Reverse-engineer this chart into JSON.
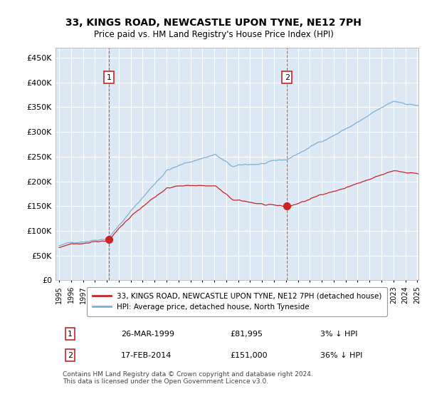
{
  "title": "33, KINGS ROAD, NEWCASTLE UPON TYNE, NE12 7PH",
  "subtitle": "Price paid vs. HM Land Registry's House Price Index (HPI)",
  "ylabel": "",
  "background_color": "#ffffff",
  "plot_bg_color": "#dce9f5",
  "grid_color": "#ffffff",
  "hpi_color": "#7ab0d4",
  "price_color": "#cc2222",
  "point1_date_idx": 51,
  "point1_value": 81995,
  "point1_label": "1",
  "point1_date_str": "26-MAR-1999",
  "point1_price_str": "£81,995",
  "point1_hpi_str": "3% ↓ HPI",
  "point2_date_idx": 231,
  "point2_value": 151000,
  "point2_label": "2",
  "point2_date_str": "17-FEB-2014",
  "point2_price_str": "£151,000",
  "point2_hpi_str": "36% ↓ HPI",
  "legend_label1": "33, KINGS ROAD, NEWCASTLE UPON TYNE, NE12 7PH (detached house)",
  "legend_label2": "HPI: Average price, detached house, North Tyneside",
  "footer": "Contains HM Land Registry data © Crown copyright and database right 2024.\nThis data is licensed under the Open Government Licence v3.0.",
  "ylim": [
    0,
    470000
  ],
  "yticks": [
    0,
    50000,
    100000,
    150000,
    200000,
    250000,
    300000,
    350000,
    400000,
    450000
  ],
  "ytick_labels": [
    "£0",
    "£50K",
    "£100K",
    "£150K",
    "£200K",
    "£250K",
    "£300K",
    "£350K",
    "£400K",
    "£450K"
  ]
}
